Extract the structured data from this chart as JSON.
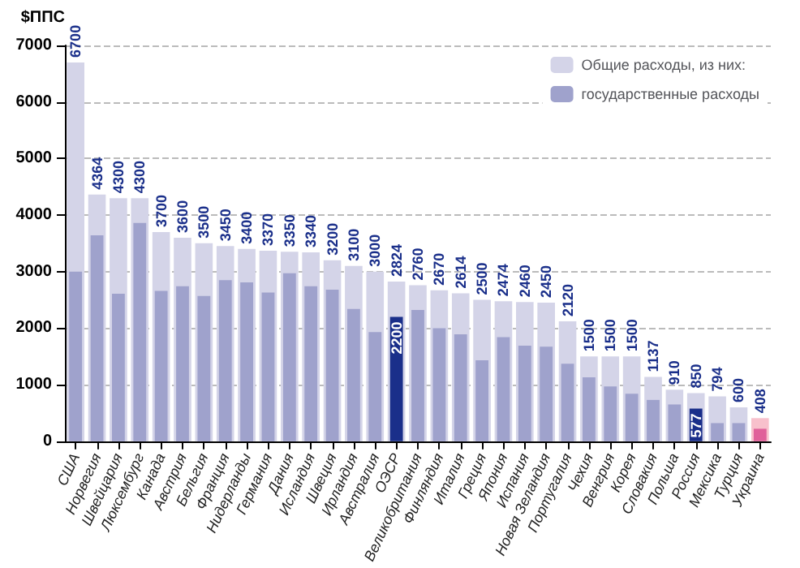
{
  "chart_data": {
    "type": "bar",
    "ylabel": "$ППС",
    "categories": [
      "США",
      "Норвегия",
      "Швейцария",
      "Люксембург",
      "Канада",
      "Австрия",
      "Бельгия",
      "Франция",
      "Нидерланды",
      "Германия",
      "Дания",
      "Исландия",
      "Швеция",
      "Ирландия",
      "Австралия",
      "ОЭСР",
      "Великобритания",
      "Финляндия",
      "Италия",
      "Греция",
      "Япония",
      "Испания",
      "Новая Зеландия",
      "Португалия",
      "Чехия",
      "Венгрия",
      "Корея",
      "Словакия",
      "Польша",
      "Россия",
      "Мексика",
      "Турция",
      "Украина"
    ],
    "series": [
      {
        "name": "Общие расходы, из них:",
        "color": "#d4d4e8",
        "colors": [
          "#d4d4e8",
          "#d4d4e8",
          "#d4d4e8",
          "#d4d4e8",
          "#d4d4e8",
          "#d4d4e8",
          "#d4d4e8",
          "#d4d4e8",
          "#d4d4e8",
          "#d4d4e8",
          "#d4d4e8",
          "#d4d4e8",
          "#d4d4e8",
          "#d4d4e8",
          "#d4d4e8",
          "#d4d4e8",
          "#d4d4e8",
          "#d4d4e8",
          "#d4d4e8",
          "#d4d4e8",
          "#d4d4e8",
          "#d4d4e8",
          "#d4d4e8",
          "#d4d4e8",
          "#d4d4e8",
          "#d4d4e8",
          "#d4d4e8",
          "#d4d4e8",
          "#d4d4e8",
          "#d4d4e8",
          "#d4d4e8",
          "#d4d4e8",
          "#f8c0cc"
        ],
        "values": [
          6700,
          4364,
          4300,
          4300,
          3700,
          3600,
          3500,
          3450,
          3400,
          3370,
          3350,
          3340,
          3200,
          3100,
          3000,
          2824,
          2760,
          2670,
          2614,
          2500,
          2474,
          2460,
          2450,
          2120,
          1500,
          1500,
          1500,
          1137,
          910,
          850,
          794,
          600,
          408
        ],
        "value_labels": [
          "6700",
          "4364",
          "4300",
          "4300",
          "3700",
          "3600",
          "3500",
          "3450",
          "3400",
          "3370",
          "3350",
          "3340",
          "3200",
          "3100",
          "3000",
          "2824",
          "2760",
          "2670",
          "2614",
          "2500",
          "2474",
          "2460",
          "2450",
          "2120",
          "1500",
          "1500",
          "1500",
          "1137",
          "910",
          "850",
          "794",
          "600",
          "408"
        ]
      },
      {
        "name": "государственные расходы",
        "color": "#9fa2cc",
        "colors": [
          "#9fa2cc",
          "#9fa2cc",
          "#9fa2cc",
          "#9fa2cc",
          "#9fa2cc",
          "#9fa2cc",
          "#9fa2cc",
          "#9fa2cc",
          "#9fa2cc",
          "#9fa2cc",
          "#9fa2cc",
          "#9fa2cc",
          "#9fa2cc",
          "#9fa2cc",
          "#9fa2cc",
          "#1a2f8a",
          "#9fa2cc",
          "#9fa2cc",
          "#9fa2cc",
          "#9fa2cc",
          "#9fa2cc",
          "#9fa2cc",
          "#9fa2cc",
          "#9fa2cc",
          "#9fa2cc",
          "#9fa2cc",
          "#9fa2cc",
          "#9fa2cc",
          "#9fa2cc",
          "#1a2f8a",
          "#9fa2cc",
          "#9fa2cc",
          "#e0609a"
        ],
        "values": [
          3000,
          3640,
          2610,
          3860,
          2660,
          2740,
          2570,
          2850,
          2810,
          2630,
          2970,
          2740,
          2680,
          2340,
          1930,
          2200,
          2320,
          2000,
          1890,
          1430,
          1840,
          1690,
          1670,
          1370,
          1130,
          970,
          840,
          730,
          650,
          577,
          320,
          320,
          220
        ],
        "value_labels": [
          null,
          null,
          null,
          null,
          null,
          null,
          null,
          null,
          null,
          null,
          null,
          null,
          null,
          null,
          null,
          "2200",
          null,
          null,
          null,
          null,
          null,
          null,
          null,
          null,
          null,
          null,
          null,
          null,
          null,
          "577",
          null,
          null,
          null
        ]
      }
    ],
    "ylim": [
      0,
      7000
    ],
    "yticks": [
      0,
      1000,
      2000,
      3000,
      4000,
      5000,
      6000,
      7000
    ],
    "grid": "y",
    "legend": "top right"
  }
}
